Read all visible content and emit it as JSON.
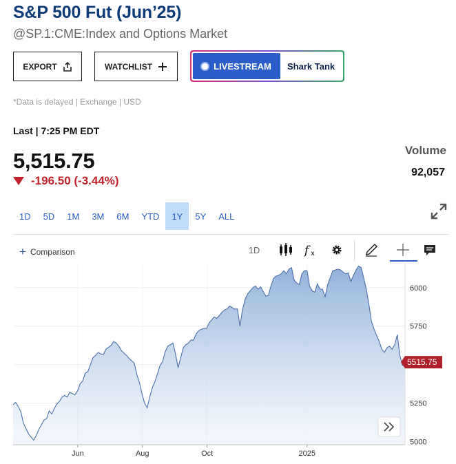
{
  "header": {
    "title": "S&P 500 Fut (Jun’25)",
    "subtitle": "@SP.1:CME:Index and Options Market"
  },
  "actions": {
    "export_label": "EXPORT",
    "watchlist_label": "WATCHLIST",
    "livestream_label": "LIVESTREAM",
    "show_label": "Shark Tank"
  },
  "notice": "*Data is delayed | Exchange | USD",
  "quote": {
    "last_label": "Last | 7:25 PM EDT",
    "price": "5,515.75",
    "change": "-196.50 (-3.44%)",
    "volume_label": "Volume",
    "volume_value": "92,057"
  },
  "range_tabs": [
    "1D",
    "5D",
    "1M",
    "3M",
    "6M",
    "YTD",
    "1Y",
    "5Y",
    "ALL"
  ],
  "selected_range": "1Y",
  "toolbar": {
    "comparison_label": "Comparison",
    "interval_label": "1D"
  },
  "colors": {
    "title": "#0d3a78",
    "accent": "#2b5cc8",
    "down": "#c2222b",
    "line": "#4b6fa8",
    "price_tag": "#b0202a"
  },
  "chart_data": {
    "type": "area",
    "x_tick_labels": [
      "Jun",
      "Aug",
      "Oct",
      "2025"
    ],
    "y_tick_labels": [
      "5000",
      "5250",
      "5500",
      "5750",
      "6000"
    ],
    "ylim": [
      4980,
      6160
    ],
    "last_price_label": "5515.75",
    "grid": true,
    "series": [
      {
        "values": [
          5240,
          5255,
          5228,
          5195,
          5120,
          5085,
          5050,
          5030,
          5010,
          5040,
          5080,
          5110,
          5140,
          5150,
          5200,
          5180,
          5215,
          5245,
          5262,
          5290,
          5300,
          5290,
          5320,
          5312,
          5305,
          5330,
          5375,
          5395,
          5445,
          5455,
          5500,
          5545,
          5560,
          5580,
          5570,
          5565,
          5600,
          5612,
          5625,
          5650,
          5640,
          5620,
          5592,
          5575,
          5560,
          5540,
          5525,
          5510,
          5435,
          5385,
          5310,
          5250,
          5220,
          5290,
          5350,
          5390,
          5440,
          5495,
          5520,
          5585,
          5620,
          5630,
          5640,
          5570,
          5480,
          5545,
          5610,
          5630,
          5640,
          5660,
          5660,
          5700,
          5720,
          5730,
          5735,
          5735,
          5770,
          5790,
          5810,
          5800,
          5820,
          5840,
          5855,
          5862,
          5880,
          5870,
          5860,
          5862,
          5750,
          5860,
          5925,
          5960,
          5980,
          6000,
          6010,
          5990,
          6005,
          5975,
          5945,
          5950,
          6010,
          6060,
          6075,
          6080,
          6090,
          6110,
          6090,
          6120,
          6130,
          6050,
          6030,
          6020,
          6090,
          6110,
          6110,
          6010,
          5980,
          5970,
          6025,
          5990,
          5990,
          5940,
          6020,
          6065,
          6110,
          6115,
          6120,
          6115,
          6100,
          6090,
          6095,
          6040,
          6080,
          6115,
          6140,
          6130,
          6060,
          5990,
          5890,
          5780,
          5730,
          5690,
          5650,
          5600,
          5580,
          5610,
          5620,
          5600,
          5630,
          5695,
          5560,
          5495,
          5515.75
        ]
      }
    ]
  }
}
